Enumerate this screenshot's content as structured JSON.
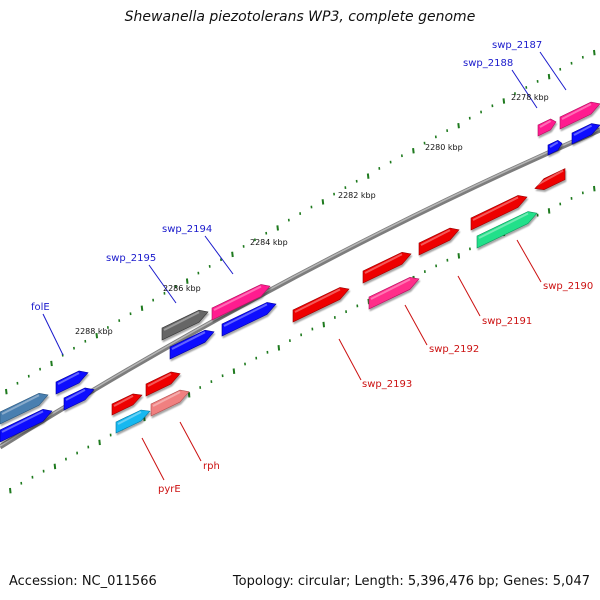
{
  "title": "Shewanella piezotolerans WP3, complete genome",
  "footer": {
    "accession": "Accession: NC_011566",
    "stats": "Topology: circular; Length: 5,396,476 bp; Genes: 5,047"
  },
  "colors": {
    "backbone": "#8a8a8a",
    "tick": "#1e7a1e",
    "label_blue": "#1a1acc",
    "label_red": "#cc1111"
  },
  "scale_labels": [
    "2278 kbp",
    "2280 kbp",
    "2282 kbp",
    "2284 kbp",
    "2286 kbp",
    "2288 kbp"
  ],
  "gene_labels": {
    "top": [
      "swp_2187",
      "swp_2188",
      "swp_2194",
      "swp_2195",
      "folE"
    ],
    "bottom": [
      "swp_2190",
      "swp_2191",
      "swp_2192",
      "swp_2193",
      "rph",
      "pyrE"
    ]
  }
}
